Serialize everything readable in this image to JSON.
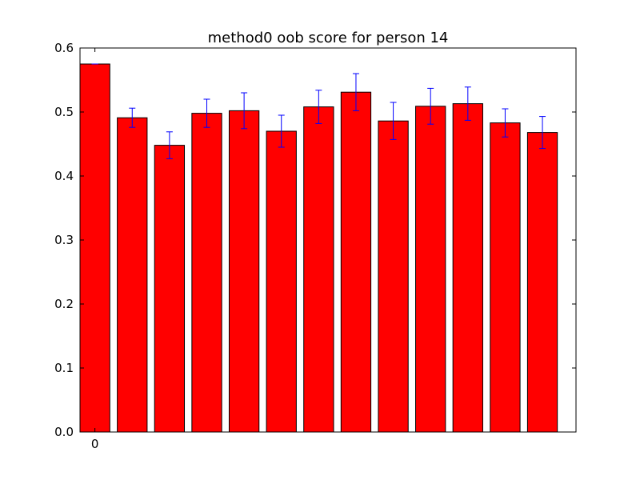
{
  "chart_data": {
    "type": "bar",
    "title": "method0 oob score for person 14",
    "xlabel": "",
    "ylabel": "",
    "ylim": [
      0,
      0.6
    ],
    "yticks": [
      "0.0",
      "0.1",
      "0.2",
      "0.3",
      "0.4",
      "0.5",
      "0.6"
    ],
    "xtick_labels": [
      "0"
    ],
    "grid": false,
    "colors": {
      "bar_fill": "#ff0000",
      "bar_edge": "#000000",
      "error_bar": "#0000ff"
    },
    "values": [
      0.575,
      0.491,
      0.448,
      0.498,
      0.502,
      0.47,
      0.508,
      0.531,
      0.486,
      0.509,
      0.513,
      0.483,
      0.468
    ],
    "errors": [
      0.0,
      0.015,
      0.021,
      0.022,
      0.028,
      0.025,
      0.026,
      0.029,
      0.029,
      0.028,
      0.026,
      0.022,
      0.025
    ]
  }
}
